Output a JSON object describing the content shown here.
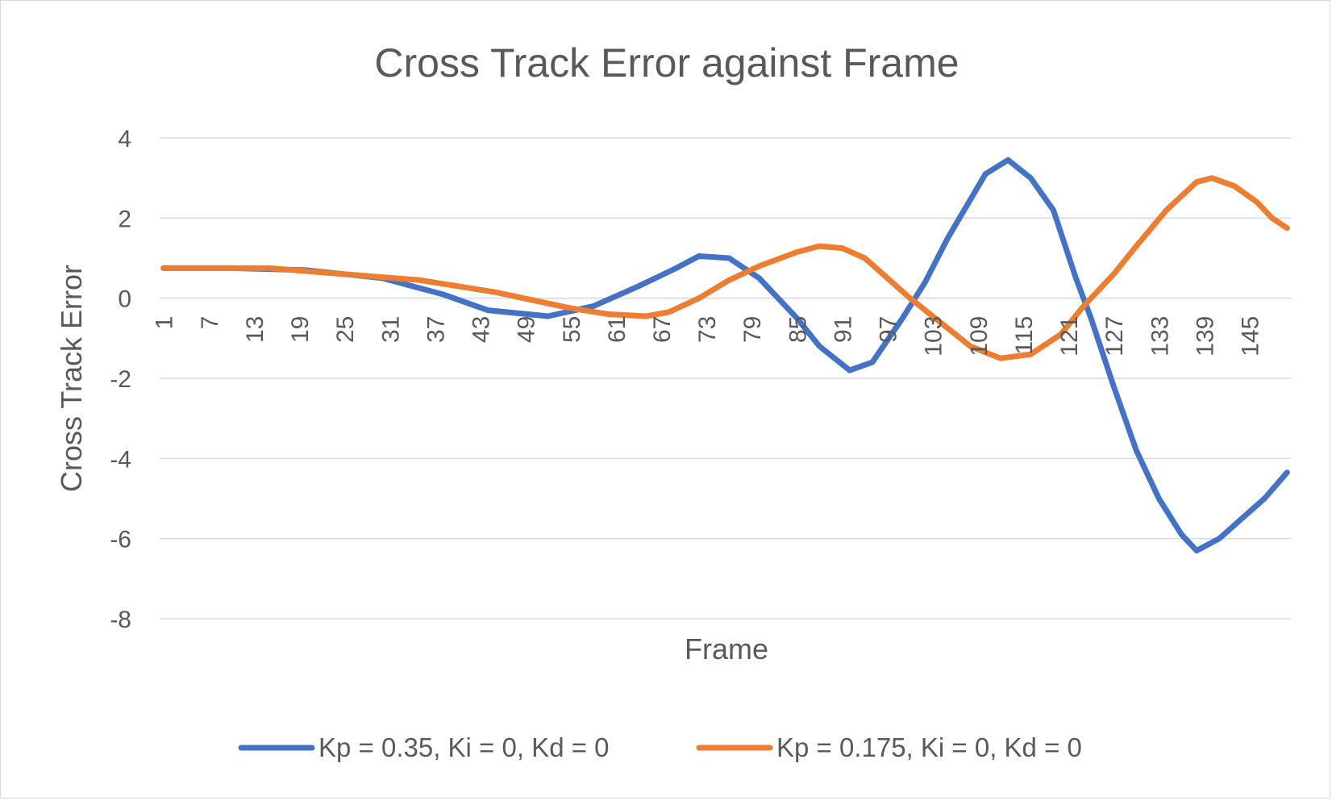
{
  "chart_data": {
    "type": "line",
    "title": "Cross Track Error against Frame",
    "xlabel": "Frame",
    "ylabel": "Cross Track Error",
    "ylim": [
      -8,
      4
    ],
    "yticks": [
      4,
      2,
      0,
      -2,
      -4,
      -6,
      -8
    ],
    "x_range": [
      1,
      150
    ],
    "xtick_labels": [
      "1",
      "7",
      "13",
      "19",
      "25",
      "31",
      "37",
      "43",
      "49",
      "55",
      "61",
      "67",
      "73",
      "79",
      "85",
      "91",
      "97",
      "103",
      "109",
      "115",
      "121",
      "127",
      "133",
      "139",
      "145"
    ],
    "grid": true,
    "legend_position": "bottom",
    "series": [
      {
        "name": "Kp = 0.35, Ki = 0, Kd = 0",
        "color": "#4472c4",
        "points": [
          [
            1,
            0.75
          ],
          [
            10,
            0.75
          ],
          [
            20,
            0.7
          ],
          [
            30,
            0.5
          ],
          [
            38,
            0.1
          ],
          [
            44,
            -0.3
          ],
          [
            52,
            -0.45
          ],
          [
            58,
            -0.2
          ],
          [
            64,
            0.3
          ],
          [
            69,
            0.75
          ],
          [
            72,
            1.05
          ],
          [
            76,
            1.0
          ],
          [
            80,
            0.5
          ],
          [
            85,
            -0.5
          ],
          [
            88,
            -1.2
          ],
          [
            92,
            -1.8
          ],
          [
            95,
            -1.6
          ],
          [
            99,
            -0.5
          ],
          [
            102,
            0.4
          ],
          [
            105,
            1.5
          ],
          [
            110,
            3.1
          ],
          [
            113,
            3.45
          ],
          [
            116,
            3.0
          ],
          [
            119,
            2.2
          ],
          [
            122,
            0.5
          ],
          [
            124,
            -0.5
          ],
          [
            127,
            -2.2
          ],
          [
            130,
            -3.8
          ],
          [
            133,
            -5.0
          ],
          [
            136,
            -5.9
          ],
          [
            138,
            -6.3
          ],
          [
            141,
            -6.0
          ],
          [
            144,
            -5.5
          ],
          [
            147,
            -5.0
          ],
          [
            150,
            -4.35
          ]
        ]
      },
      {
        "name": "Kp = 0.175, Ki = 0, Kd = 0",
        "color": "#ed7d31",
        "points": [
          [
            1,
            0.75
          ],
          [
            15,
            0.75
          ],
          [
            25,
            0.6
          ],
          [
            35,
            0.45
          ],
          [
            45,
            0.15
          ],
          [
            55,
            -0.25
          ],
          [
            60,
            -0.4
          ],
          [
            65,
            -0.45
          ],
          [
            68,
            -0.35
          ],
          [
            72,
            0.0
          ],
          [
            76,
            0.45
          ],
          [
            80,
            0.8
          ],
          [
            85,
            1.15
          ],
          [
            88,
            1.3
          ],
          [
            91,
            1.25
          ],
          [
            94,
            1.0
          ],
          [
            97,
            0.5
          ],
          [
            100,
            0.0
          ],
          [
            104,
            -0.6
          ],
          [
            108,
            -1.2
          ],
          [
            112,
            -1.5
          ],
          [
            116,
            -1.4
          ],
          [
            120,
            -0.9
          ],
          [
            123,
            -0.2
          ],
          [
            127,
            0.6
          ],
          [
            130,
            1.3
          ],
          [
            134,
            2.2
          ],
          [
            138,
            2.9
          ],
          [
            140,
            3.0
          ],
          [
            143,
            2.8
          ],
          [
            146,
            2.4
          ],
          [
            148,
            2.0
          ],
          [
            150,
            1.75
          ]
        ]
      }
    ]
  }
}
